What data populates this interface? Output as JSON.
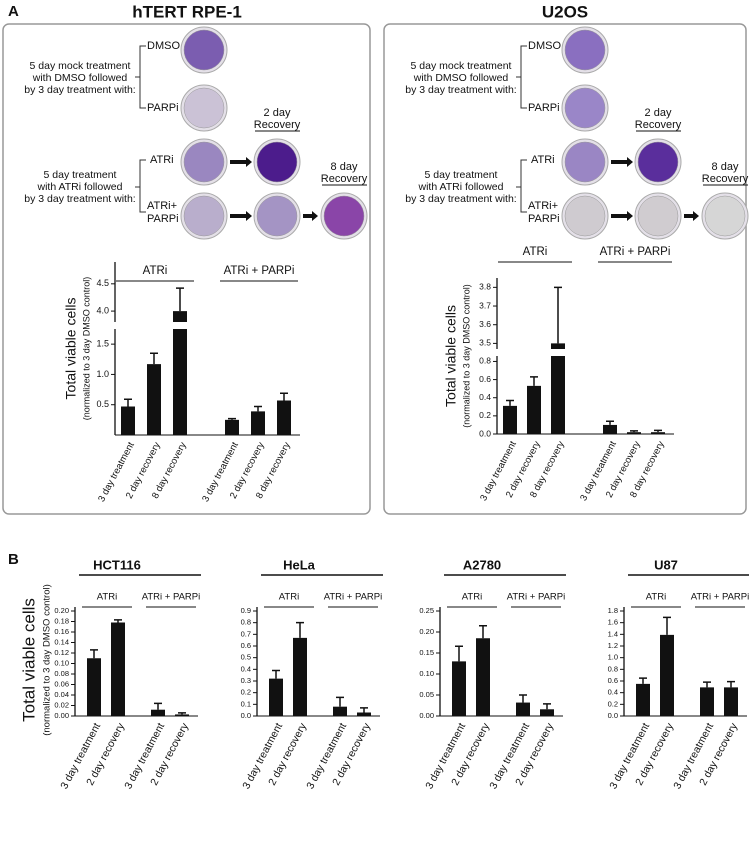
{
  "panel_a": {
    "label": "A",
    "cell_lines": [
      {
        "title": "hTERT RPE-1",
        "mock_text": [
          "5 day mock treatment",
          "with DMSO followed",
          "by 3 day treatment with:"
        ],
        "dmso": "DMSO",
        "parpi": "PARPi",
        "atri_text": [
          "5 day treatment",
          "with ATRi followed",
          "by 3 day treatment with:"
        ],
        "atri": "ATRi",
        "atri_parpi": [
          "ATRi+",
          "PARPi"
        ],
        "recovery_2": [
          "2 day",
          "Recovery"
        ],
        "recovery_8": [
          "8 day",
          "Recovery"
        ]
      },
      {
        "title": "U2OS",
        "mock_text": [
          "5 day mock treatment",
          "with DMSO followed",
          "by 3 day treatment with:"
        ],
        "dmso": "DMSO",
        "parpi": "PARPi",
        "atri_text": [
          "5 day treatment",
          "with ATRi followed",
          "by 3 day treatment with:"
        ],
        "atri": "ATRi",
        "atri_parpi": [
          "ATRi+",
          "PARPi"
        ],
        "recovery_2": [
          "2 day",
          "Recovery"
        ],
        "recovery_8": [
          "8 day",
          "Recovery"
        ]
      }
    ]
  },
  "panel_b": {
    "label": "B",
    "ylabel": "Total viable cells",
    "ylabel_sub": "(normalized to 3 day DMSO control)"
  },
  "chart_data": [
    {
      "type": "bar",
      "ylabel": "Total viable cells",
      "ylabel_sub": "(normalized to 3 day DMSO control)",
      "color": "#111111",
      "ylim": [
        0,
        4.9
      ],
      "ybreak": [
        1.75,
        3.8
      ],
      "yticks": [
        0.5,
        {
          "value": 1,
          "label": "1.0"
        },
        1.5,
        {
          "value": 4,
          "label": "4.0"
        },
        4.5
      ],
      "groups": [
        {
          "name": "ATRi",
          "categories": [
            "3 day treatment",
            "2 day recovery",
            "8 day recovery"
          ],
          "values": [
            0.47,
            1.17,
            4.0
          ],
          "errors": [
            0.12,
            0.18,
            0.42
          ]
        },
        {
          "name": "ATRi + PARPi",
          "categories": [
            "3 day treatment",
            "2 day recovery",
            "8 day recovery"
          ],
          "values": [
            0.25,
            0.39,
            0.57
          ],
          "errors": [
            0.02,
            0.08,
            0.12
          ]
        }
      ]
    },
    {
      "type": "bar",
      "ylabel": "Total viable cells",
      "ylabel_sub": "(normalized to 3 day DMSO control)",
      "color": "#111111",
      "ylim": [
        0,
        3.85
      ],
      "ybreak": [
        0.86,
        3.47
      ],
      "yticks": [
        {
          "value": 0,
          "label": "0.0"
        },
        0.2,
        0.4,
        0.6,
        0.8,
        3.5,
        3.6,
        3.7,
        3.8
      ],
      "groups": [
        {
          "name": "ATRi",
          "categories": [
            "3 day treatment",
            "2 day recovery",
            "8 day recovery"
          ],
          "values": [
            0.31,
            0.53,
            3.5
          ],
          "errors": [
            0.06,
            0.1,
            0.3
          ]
        },
        {
          "name": "ATRi + PARPi",
          "categories": [
            "3 day treatment",
            "2 day recovery",
            "8 day recovery"
          ],
          "values": [
            0.1,
            0.02,
            0.02
          ],
          "errors": [
            0.04,
            0.015,
            0.02
          ]
        }
      ]
    },
    {
      "type": "bar",
      "title": "HCT116",
      "color": "#111111",
      "ylim": [
        0,
        0.2
      ],
      "yticks": [
        {
          "value": 0,
          "label": "0.00"
        },
        0.02,
        0.04,
        0.06,
        0.08,
        {
          "value": 0.1,
          "label": "0.10"
        },
        0.12,
        0.14,
        0.16,
        0.18,
        {
          "value": 0.2,
          "label": "0.20"
        }
      ],
      "groups": [
        {
          "name": "ATRi",
          "categories": [
            "3 day treatment",
            "2 day recovery"
          ],
          "values": [
            0.11,
            0.178
          ],
          "errors": [
            0.016,
            0.005
          ]
        },
        {
          "name": "ATRi + PARPi",
          "categories": [
            "3 day treatment",
            "2 day recovery"
          ],
          "values": [
            0.012,
            0.003
          ],
          "errors": [
            0.012,
            0.003
          ]
        }
      ]
    },
    {
      "type": "bar",
      "title": "HeLa",
      "color": "#111111",
      "ylim": [
        0,
        0.9
      ],
      "yticks": [
        {
          "value": 0,
          "label": "0.0"
        },
        0.1,
        0.2,
        0.3,
        0.4,
        0.5,
        0.6,
        0.7,
        0.8,
        0.9
      ],
      "groups": [
        {
          "name": "ATRi",
          "categories": [
            "3 day treatment",
            "2 day recovery"
          ],
          "values": [
            0.32,
            0.67
          ],
          "errors": [
            0.07,
            0.13
          ]
        },
        {
          "name": "ATRi + PARPi",
          "categories": [
            "3 day treatment",
            "2 day recovery"
          ],
          "values": [
            0.08,
            0.03
          ],
          "errors": [
            0.08,
            0.04
          ]
        }
      ]
    },
    {
      "type": "bar",
      "title": "A2780",
      "color": "#111111",
      "ylim": [
        0,
        0.25
      ],
      "yticks": [
        {
          "value": 0,
          "label": "0.00"
        },
        0.05,
        {
          "value": 0.1,
          "label": "0.10"
        },
        0.15,
        {
          "value": 0.2,
          "label": "0.20"
        },
        0.25
      ],
      "groups": [
        {
          "name": "ATRi",
          "categories": [
            "3 day treatment",
            "2 day recovery"
          ],
          "values": [
            0.13,
            0.185
          ],
          "errors": [
            0.036,
            0.03
          ]
        },
        {
          "name": "ATRi + PARPi",
          "categories": [
            "3 day treatment",
            "2 day recovery"
          ],
          "values": [
            0.032,
            0.016
          ],
          "errors": [
            0.018,
            0.013
          ]
        }
      ]
    },
    {
      "type": "bar",
      "title": "U87",
      "color": "#111111",
      "ylim": [
        0,
        1.8
      ],
      "yticks": [
        {
          "value": 0,
          "label": "0.0"
        },
        0.2,
        0.4,
        0.6,
        0.8,
        {
          "value": 1,
          "label": "1.0"
        },
        1.2,
        1.4,
        1.6,
        1.8
      ],
      "groups": [
        {
          "name": "ATRi",
          "categories": [
            "3 day treatment",
            "2 day recovery"
          ],
          "values": [
            0.55,
            1.39
          ],
          "errors": [
            0.1,
            0.3
          ]
        },
        {
          "name": "ATRi + PARPi",
          "categories": [
            "3 day treatment",
            "2 day recovery"
          ],
          "values": [
            0.49,
            0.49
          ],
          "errors": [
            0.09,
            0.1
          ]
        }
      ]
    }
  ]
}
